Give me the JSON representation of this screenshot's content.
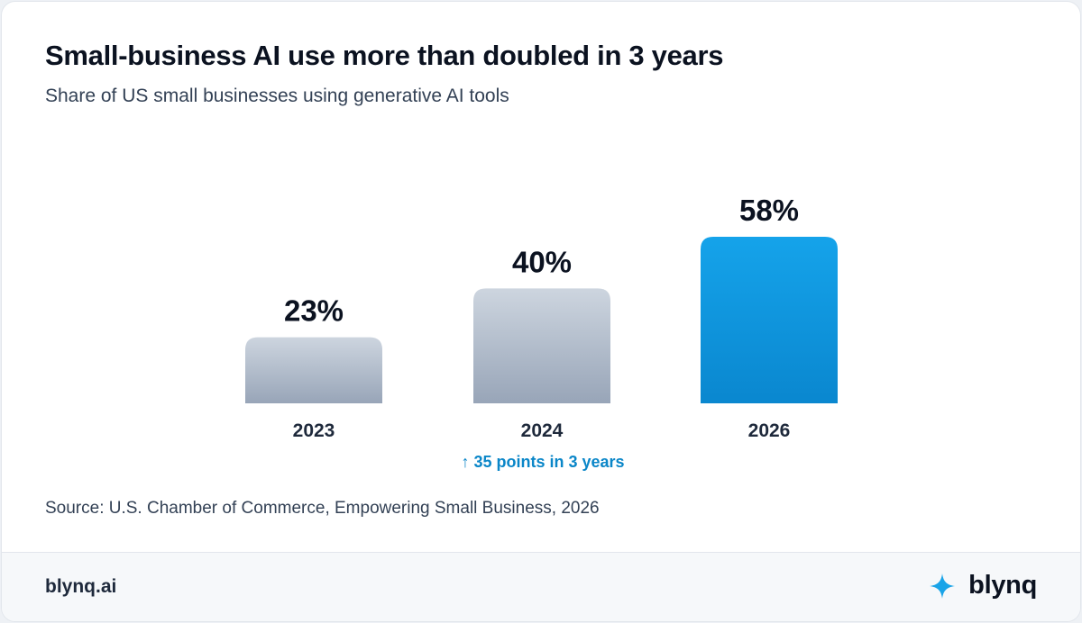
{
  "header": {
    "title": "Small-business AI use more than doubled in 3 years",
    "subtitle": "Share of US small businesses using generative AI tools"
  },
  "chart_data": {
    "type": "bar",
    "categories": [
      "2023",
      "2024",
      "2026"
    ],
    "values": [
      23,
      40,
      58
    ],
    "value_labels": [
      "23%",
      "40%",
      "58%"
    ],
    "unit": "%",
    "highlight_category": "2026",
    "ylim": [
      0,
      58
    ],
    "grid": false,
    "annotation": {
      "under_category": "2024",
      "arrow": "↑",
      "text": "35 points in 3 years"
    },
    "colors": {
      "bar_muted_top": "#cdd5df",
      "bar_muted_bottom": "#98a5b8",
      "bar_highlight_top": "#15a3ea",
      "bar_highlight_bottom": "#0a87cf",
      "annotation": "#0a86c8"
    }
  },
  "source": "Source: U.S. Chamber of Commerce, Empowering Small Business, 2026",
  "footer": {
    "url": "blynq.ai",
    "brand_name": "blynq",
    "brand_icon": "sparkle-icon",
    "brand_color": "#1aa4e8"
  }
}
